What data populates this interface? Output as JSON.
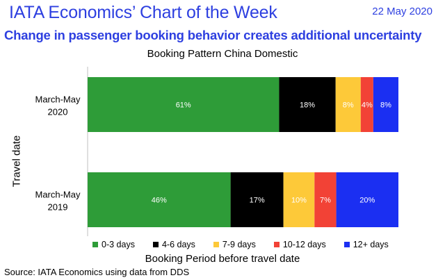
{
  "header": {
    "title": "IATA Economics’ Chart of the Week",
    "date": "22 May 2020"
  },
  "subtitle": "Change in passenger booking behavior creates additional uncertainty",
  "source": "Source: IATA Economics using data from DDS",
  "chart_data": {
    "type": "bar",
    "orientation": "horizontal",
    "stacked": true,
    "normalized": true,
    "title": "Booking Pattern China Domestic",
    "xlabel": "Booking Period before travel date",
    "ylabel": "Travel date",
    "categories": [
      "March-May 2020",
      "March-May 2019"
    ],
    "category_lines": [
      [
        "March-May",
        "2020"
      ],
      [
        "March-May",
        "2019"
      ]
    ],
    "series": [
      {
        "name": "0-3 days",
        "color": "#2e9c38",
        "values": [
          61,
          46
        ],
        "labels": [
          "61%",
          "46%"
        ]
      },
      {
        "name": "4-6 days",
        "color": "#000000",
        "values": [
          18,
          17
        ],
        "labels": [
          "18%",
          "17%"
        ]
      },
      {
        "name": "7-9 days",
        "color": "#fdc939",
        "values": [
          8,
          10
        ],
        "labels": [
          "8%",
          "10%"
        ]
      },
      {
        "name": "10-12 days",
        "color": "#f24236",
        "values": [
          4,
          7
        ],
        "labels": [
          "4%",
          "7%"
        ]
      },
      {
        "name": "12+ days",
        "color": "#1b2ff2",
        "values": [
          8,
          20
        ],
        "labels": [
          "8%",
          "20%"
        ]
      }
    ],
    "legend_position": "bottom",
    "grid": false
  }
}
